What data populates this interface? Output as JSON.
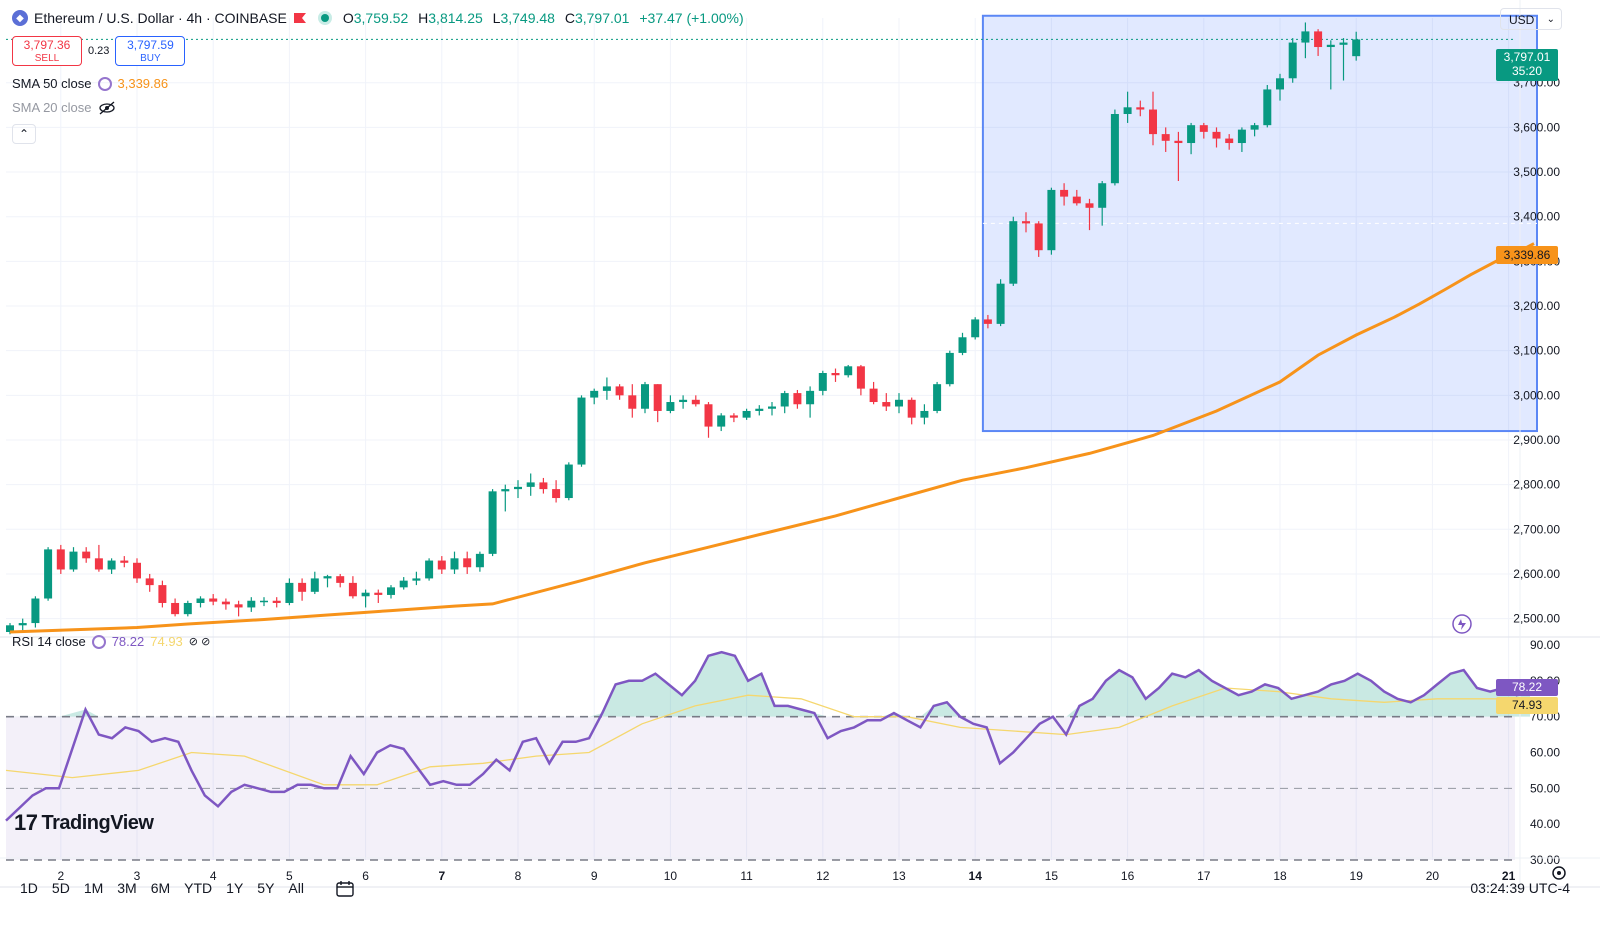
{
  "header": {
    "symbol_title": "Ethereum / U.S. Dollar · 4h · COINBASE",
    "open_label": "O",
    "open": "3,759.52",
    "high_label": "H",
    "high": "3,814.25",
    "low_label": "L",
    "low": "3,749.48",
    "close_label": "C",
    "close": "3,797.01",
    "change": "+37.47 (+1.00%)"
  },
  "trade": {
    "sell_price": "3,797.36",
    "sell_label": "SELL",
    "spread": "0.23",
    "buy_price": "3,797.59",
    "buy_label": "BUY"
  },
  "indicators": {
    "sma50_label": "SMA 50 close",
    "sma50_value": "3,339.86",
    "sma20_label": "SMA 20 close",
    "rsi_label": "RSI 14 close",
    "rsi_value": "78.22",
    "rsi_ma_value": "74.93"
  },
  "currency": "USD",
  "price_tag": {
    "price": "3,797.01",
    "countdown": "35:20"
  },
  "sma_tag": "3,339.86",
  "rsi_tags": {
    "rsi": "78.22",
    "rsi_ma": "74.93"
  },
  "timeframes": [
    "1D",
    "5D",
    "1M",
    "3M",
    "6M",
    "YTD",
    "1Y",
    "5Y",
    "All"
  ],
  "clock": "03:24:39 UTC-4",
  "brand": "TradingView",
  "colors": {
    "up": "#089981",
    "down": "#f23645",
    "sma": "#f7931a",
    "rsi": "#7e57c2",
    "rsi_ma": "#f5d76e"
  },
  "chart_data": {
    "type": "candlestick",
    "title": "Ethereum / U.S. Dollar · 4h · COINBASE",
    "x_tick_labels": [
      "2",
      "3",
      "4",
      "5",
      "6",
      "7",
      "8",
      "9",
      "10",
      "11",
      "12",
      "13",
      "14",
      "15",
      "16",
      "17",
      "18",
      "19",
      "20",
      "21"
    ],
    "y_ticks": [
      2500,
      2600,
      2700,
      2800,
      2900,
      3000,
      3100,
      3200,
      3300,
      3400,
      3500,
      3600,
      3700
    ],
    "y_tick_labels": [
      "2,500.00",
      "2,600.00",
      "2,700.00",
      "2,800.00",
      "2,900.00",
      "3,000.00",
      "3,100.00",
      "3,200.00",
      "3,300.00",
      "3,400.00",
      "3,500.00",
      "3,600.00",
      "3,700.00"
    ],
    "ylim": [
      2470,
      3845
    ],
    "candles_ohlc": [
      [
        2470,
        2490,
        2465,
        2485
      ],
      [
        2485,
        2500,
        2470,
        2490
      ],
      [
        2490,
        2550,
        2480,
        2545
      ],
      [
        2545,
        2660,
        2540,
        2655
      ],
      [
        2655,
        2665,
        2600,
        2610
      ],
      [
        2610,
        2660,
        2605,
        2650
      ],
      [
        2650,
        2660,
        2625,
        2635
      ],
      [
        2635,
        2665,
        2605,
        2610
      ],
      [
        2610,
        2635,
        2600,
        2630
      ],
      [
        2630,
        2640,
        2615,
        2625
      ],
      [
        2625,
        2635,
        2580,
        2590
      ],
      [
        2590,
        2600,
        2560,
        2575
      ],
      [
        2575,
        2585,
        2525,
        2535
      ],
      [
        2535,
        2545,
        2505,
        2510
      ],
      [
        2510,
        2540,
        2505,
        2535
      ],
      [
        2535,
        2550,
        2525,
        2545
      ],
      [
        2545,
        2555,
        2530,
        2538
      ],
      [
        2538,
        2545,
        2520,
        2532
      ],
      [
        2532,
        2540,
        2505,
        2525
      ],
      [
        2525,
        2548,
        2515,
        2540
      ],
      [
        2540,
        2548,
        2528,
        2540
      ],
      [
        2540,
        2548,
        2525,
        2535
      ],
      [
        2535,
        2590,
        2530,
        2580
      ],
      [
        2580,
        2590,
        2540,
        2560
      ],
      [
        2560,
        2605,
        2555,
        2590
      ],
      [
        2590,
        2598,
        2570,
        2595
      ],
      [
        2595,
        2600,
        2570,
        2580
      ],
      [
        2580,
        2595,
        2545,
        2550
      ],
      [
        2550,
        2565,
        2525,
        2558
      ],
      [
        2558,
        2565,
        2535,
        2553
      ],
      [
        2553,
        2575,
        2545,
        2570
      ],
      [
        2570,
        2593,
        2565,
        2585
      ],
      [
        2585,
        2605,
        2575,
        2590
      ],
      [
        2590,
        2635,
        2585,
        2630
      ],
      [
        2630,
        2640,
        2600,
        2610
      ],
      [
        2610,
        2650,
        2600,
        2635
      ],
      [
        2635,
        2650,
        2600,
        2615
      ],
      [
        2615,
        2650,
        2605,
        2645
      ],
      [
        2645,
        2790,
        2640,
        2785
      ],
      [
        2785,
        2800,
        2740,
        2790
      ],
      [
        2790,
        2810,
        2770,
        2795
      ],
      [
        2795,
        2825,
        2775,
        2805
      ],
      [
        2805,
        2815,
        2780,
        2790
      ],
      [
        2790,
        2810,
        2760,
        2770
      ],
      [
        2770,
        2850,
        2765,
        2845
      ],
      [
        2845,
        3000,
        2840,
        2995
      ],
      [
        2995,
        3015,
        2980,
        3010
      ],
      [
        3010,
        3040,
        2990,
        3020
      ],
      [
        3020,
        3025,
        2990,
        3000
      ],
      [
        3000,
        3025,
        2950,
        2970
      ],
      [
        2970,
        3030,
        2960,
        3025
      ],
      [
        3025,
        3025,
        2940,
        2965
      ],
      [
        2965,
        3000,
        2960,
        2985
      ],
      [
        2985,
        3000,
        2970,
        2990
      ],
      [
        2990,
        3000,
        2975,
        2980
      ],
      [
        2980,
        2985,
        2905,
        2930
      ],
      [
        2930,
        2960,
        2920,
        2955
      ],
      [
        2955,
        2960,
        2940,
        2950
      ],
      [
        2950,
        2970,
        2945,
        2965
      ],
      [
        2965,
        2978,
        2955,
        2970
      ],
      [
        2970,
        2985,
        2955,
        2975
      ],
      [
        2975,
        3010,
        2960,
        3005
      ],
      [
        3005,
        3012,
        2970,
        2980
      ],
      [
        2980,
        3020,
        2950,
        3010
      ],
      [
        3010,
        3055,
        3000,
        3050
      ],
      [
        3050,
        3060,
        3030,
        3045
      ],
      [
        3045,
        3068,
        3040,
        3065
      ],
      [
        3065,
        3068,
        3000,
        3015
      ],
      [
        3015,
        3030,
        2980,
        2985
      ],
      [
        2985,
        3005,
        2965,
        2975
      ],
      [
        2975,
        3005,
        2960,
        2990
      ],
      [
        2990,
        2995,
        2935,
        2950
      ],
      [
        2950,
        2980,
        2935,
        2965
      ],
      [
        2965,
        3030,
        2960,
        3025
      ],
      [
        3025,
        3100,
        3020,
        3095
      ],
      [
        3095,
        3140,
        3090,
        3130
      ],
      [
        3130,
        3175,
        3125,
        3170
      ],
      [
        3170,
        3180,
        3150,
        3160
      ],
      [
        3160,
        3260,
        3155,
        3250
      ],
      [
        3250,
        3400,
        3245,
        3390
      ],
      [
        3390,
        3410,
        3365,
        3385
      ],
      [
        3385,
        3390,
        3310,
        3325
      ],
      [
        3325,
        3465,
        3315,
        3460
      ],
      [
        3460,
        3475,
        3425,
        3445
      ],
      [
        3445,
        3460,
        3425,
        3430
      ],
      [
        3430,
        3440,
        3370,
        3420
      ],
      [
        3420,
        3480,
        3380,
        3475
      ],
      [
        3475,
        3640,
        3470,
        3630
      ],
      [
        3630,
        3680,
        3610,
        3645
      ],
      [
        3645,
        3660,
        3625,
        3640
      ],
      [
        3640,
        3680,
        3560,
        3585
      ],
      [
        3585,
        3600,
        3545,
        3570
      ],
      [
        3570,
        3590,
        3480,
        3565
      ],
      [
        3565,
        3610,
        3540,
        3605
      ],
      [
        3605,
        3610,
        3575,
        3590
      ],
      [
        3590,
        3600,
        3555,
        3575
      ],
      [
        3575,
        3585,
        3550,
        3565
      ],
      [
        3565,
        3600,
        3545,
        3595
      ],
      [
        3595,
        3610,
        3580,
        3605
      ],
      [
        3605,
        3695,
        3600,
        3685
      ],
      [
        3685,
        3720,
        3660,
        3710
      ],
      [
        3710,
        3800,
        3700,
        3790
      ],
      [
        3790,
        3835,
        3755,
        3815
      ],
      [
        3815,
        3820,
        3760,
        3780
      ],
      [
        3780,
        3795,
        3685,
        3785
      ],
      [
        3785,
        3800,
        3705,
        3790
      ],
      [
        3759.52,
        3814.25,
        3749.48,
        3797.01
      ]
    ],
    "sma50": [
      [
        0,
        2470
      ],
      [
        5,
        2475
      ],
      [
        10,
        2480
      ],
      [
        14,
        2488
      ],
      [
        20,
        2498
      ],
      [
        25,
        2508
      ],
      [
        30,
        2518
      ],
      [
        35,
        2528
      ],
      [
        38,
        2533
      ],
      [
        45,
        2585
      ],
      [
        50,
        2625
      ],
      [
        55,
        2660
      ],
      [
        60,
        2695
      ],
      [
        65,
        2730
      ],
      [
        70,
        2770
      ],
      [
        75,
        2810
      ],
      [
        80,
        2838
      ],
      [
        85,
        2870
      ],
      [
        90,
        2910
      ],
      [
        95,
        2965
      ],
      [
        100,
        3030
      ],
      [
        103,
        3090
      ],
      [
        106,
        3135
      ],
      [
        109,
        3175
      ],
      [
        111,
        3205
      ],
      [
        113,
        3237
      ],
      [
        115,
        3270
      ],
      [
        117,
        3300
      ],
      [
        119,
        3325
      ],
      [
        120,
        3339.86
      ]
    ],
    "rsi_ylim": [
      30,
      90
    ],
    "rsi_ticks": [
      "90.00",
      "80.00",
      "70.00",
      "60.00",
      "50.00",
      "40.00",
      "30.00"
    ],
    "rsi_levels": [
      70,
      50,
      30
    ],
    "rsi": [
      [
        0,
        41
      ],
      [
        2,
        48
      ],
      [
        3,
        50
      ],
      [
        4,
        50
      ],
      [
        6,
        72
      ],
      [
        7,
        65
      ],
      [
        8,
        64
      ],
      [
        9,
        67
      ],
      [
        10,
        66
      ],
      [
        11,
        63
      ],
      [
        12,
        64
      ],
      [
        13,
        63
      ],
      [
        14,
        55
      ],
      [
        15,
        48
      ],
      [
        16,
        45
      ],
      [
        17,
        49
      ],
      [
        18,
        51
      ],
      [
        19,
        50
      ],
      [
        20,
        49
      ],
      [
        21,
        49
      ],
      [
        22,
        51
      ],
      [
        23,
        51
      ],
      [
        24,
        50
      ],
      [
        25,
        50
      ],
      [
        26,
        59
      ],
      [
        27,
        54
      ],
      [
        28,
        60
      ],
      [
        29,
        62
      ],
      [
        30,
        61
      ],
      [
        31,
        56
      ],
      [
        32,
        51
      ],
      [
        33,
        52
      ],
      [
        34,
        51
      ],
      [
        35,
        51
      ],
      [
        36,
        54
      ],
      [
        37,
        58
      ],
      [
        38,
        55
      ],
      [
        39,
        63
      ],
      [
        40,
        64
      ],
      [
        41,
        57
      ],
      [
        42,
        63
      ],
      [
        43,
        63
      ],
      [
        44,
        64
      ],
      [
        45,
        71
      ],
      [
        46,
        79
      ],
      [
        47,
        80
      ],
      [
        48,
        80
      ],
      [
        49,
        82
      ],
      [
        50,
        79
      ],
      [
        51,
        76
      ],
      [
        52,
        80
      ],
      [
        53,
        87
      ],
      [
        54,
        88
      ],
      [
        55,
        87
      ],
      [
        56,
        80
      ],
      [
        57,
        82
      ],
      [
        58,
        73
      ],
      [
        59,
        73
      ],
      [
        60,
        72
      ],
      [
        61,
        71
      ],
      [
        62,
        64
      ],
      [
        63,
        66
      ],
      [
        64,
        67
      ],
      [
        65,
        69
      ],
      [
        66,
        69
      ],
      [
        67,
        71
      ],
      [
        68,
        69
      ],
      [
        69,
        67
      ],
      [
        70,
        73
      ],
      [
        71,
        74
      ],
      [
        72,
        70
      ],
      [
        73,
        68
      ],
      [
        74,
        67
      ],
      [
        75,
        57
      ],
      [
        76,
        60
      ],
      [
        77,
        64
      ],
      [
        78,
        68
      ],
      [
        79,
        70
      ],
      [
        80,
        65
      ],
      [
        81,
        73
      ],
      [
        82,
        75
      ],
      [
        83,
        80
      ],
      [
        84,
        83
      ],
      [
        85,
        81
      ],
      [
        86,
        75
      ],
      [
        87,
        78
      ],
      [
        88,
        82
      ],
      [
        89,
        81
      ],
      [
        90,
        83
      ],
      [
        91,
        80
      ],
      [
        92,
        78
      ],
      [
        93,
        76
      ],
      [
        94,
        77
      ],
      [
        95,
        79
      ],
      [
        96,
        78
      ],
      [
        97,
        75
      ],
      [
        98,
        76
      ],
      [
        99,
        77
      ],
      [
        100,
        79
      ],
      [
        101,
        80
      ],
      [
        102,
        82
      ],
      [
        103,
        80
      ],
      [
        104,
        77
      ],
      [
        105,
        75
      ],
      [
        106,
        74
      ],
      [
        107,
        76
      ],
      [
        108,
        79
      ],
      [
        109,
        82
      ],
      [
        110,
        83
      ],
      [
        111,
        78
      ],
      [
        112,
        77
      ],
      [
        113,
        78
      ],
      [
        114,
        76
      ],
      [
        115,
        78.22
      ]
    ],
    "rsi_ma": [
      [
        0,
        55
      ],
      [
        5,
        53
      ],
      [
        10,
        55
      ],
      [
        14,
        60
      ],
      [
        18,
        59
      ],
      [
        24,
        51
      ],
      [
        28,
        51
      ],
      [
        32,
        56
      ],
      [
        36,
        57
      ],
      [
        40,
        59
      ],
      [
        44,
        60
      ],
      [
        48,
        68
      ],
      [
        52,
        73
      ],
      [
        56,
        76
      ],
      [
        60,
        75
      ],
      [
        64,
        70
      ],
      [
        68,
        70
      ],
      [
        72,
        67
      ],
      [
        76,
        66
      ],
      [
        80,
        65
      ],
      [
        84,
        67
      ],
      [
        88,
        73
      ],
      [
        92,
        78
      ],
      [
        96,
        77
      ],
      [
        100,
        75
      ],
      [
        104,
        74
      ],
      [
        108,
        75
      ],
      [
        112,
        75
      ],
      [
        115,
        74.93
      ]
    ],
    "highlight_box": {
      "x_from_index": 77,
      "x_to_index": 120,
      "price_from": 2920,
      "price_to": 3850
    }
  }
}
